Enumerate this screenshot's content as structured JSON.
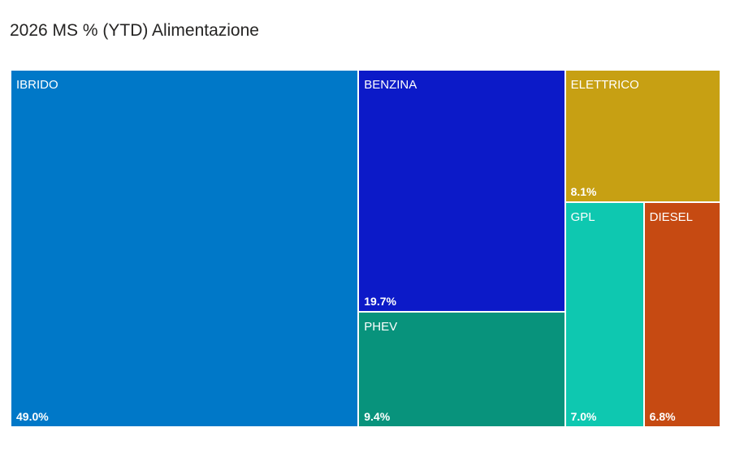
{
  "chart_data": {
    "type": "treemap",
    "title": "2026 MS % (YTD) Alimentazione",
    "categories": [
      "IBRIDO",
      "BENZINA",
      "PHEV",
      "ELETTRICO",
      "GPL",
      "DIESEL"
    ],
    "values": [
      49.0,
      19.7,
      9.4,
      8.1,
      7.0,
      6.8
    ],
    "value_labels": [
      "49.0%",
      "19.7%",
      "9.4%",
      "8.1%",
      "7.0%",
      "6.8%"
    ],
    "unit": "%",
    "colors": [
      "#0078c8",
      "#0c1ac8",
      "#08937c",
      "#c7a013",
      "#0ec8b0",
      "#c64a12"
    ],
    "legend": "none"
  }
}
